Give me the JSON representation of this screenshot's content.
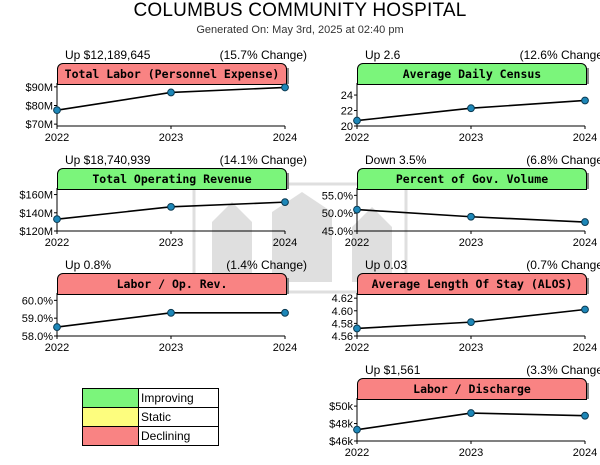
{
  "header": {
    "title": "COLUMBUS COMMUNITY HOSPITAL",
    "generated": "Generated On: May 3rd, 2025 at 02:40 pm"
  },
  "colors": {
    "improving": "#7bf57b",
    "static": "#fdfd7e",
    "declining": "#f98383",
    "point": "#1d87b8"
  },
  "legend": [
    {
      "label": "Improving",
      "color": "#7bf57b"
    },
    {
      "label": "Static",
      "color": "#fdfd7e"
    },
    {
      "label": "Declining",
      "color": "#f98383"
    }
  ],
  "chart_data": [
    {
      "type": "line",
      "title": "Total Labor (Personnel Expense)",
      "status": "declining",
      "change_text": "Up $12,189,645",
      "pct_text": "(15.7% Change)",
      "x": [
        "2022",
        "2023",
        "2024"
      ],
      "values": [
        77.5,
        87.0,
        89.7
      ],
      "yticks": [
        "$90M",
        "$80M",
        "$70M"
      ],
      "ytick_values": [
        90,
        80,
        70
      ],
      "ylim": [
        69,
        91
      ]
    },
    {
      "type": "line",
      "title": "Average Daily Census",
      "status": "improving",
      "change_text": "Up 2.6",
      "pct_text": "(12.6% Change)",
      "x": [
        "2022",
        "2023",
        "2024"
      ],
      "values": [
        20.7,
        22.3,
        23.3
      ],
      "yticks": [
        "24",
        "22",
        "20"
      ],
      "ytick_values": [
        24,
        22,
        20
      ],
      "ylim": [
        20,
        25.3
      ]
    },
    {
      "type": "line",
      "title": "Total Operating Revenue",
      "status": "improving",
      "change_text": "Up $18,740,939",
      "pct_text": "(14.1% Change)",
      "x": [
        "2022",
        "2023",
        "2024"
      ],
      "values": [
        133.0,
        146.5,
        151.7
      ],
      "yticks": [
        "$160M",
        "$140M",
        "$120M"
      ],
      "ytick_values": [
        160,
        140,
        120
      ],
      "ylim": [
        120,
        165
      ]
    },
    {
      "type": "line",
      "title": "Percent of Gov. Volume",
      "status": "improving",
      "change_text": "Down 3.5%",
      "pct_text": "(6.8% Change)",
      "x": [
        "2022",
        "2023",
        "2024"
      ],
      "values": [
        51.0,
        49.0,
        47.5
      ],
      "yticks": [
        "55.0%",
        "50.0%",
        "45.0%"
      ],
      "ytick_values": [
        55,
        50,
        45
      ],
      "ylim": [
        45,
        56.5
      ]
    },
    {
      "type": "line",
      "title": "Labor / Op. Rev.",
      "status": "declining",
      "change_text": "Up 0.8%",
      "pct_text": "(1.4% Change)",
      "x": [
        "2022",
        "2023",
        "2024"
      ],
      "values": [
        58.5,
        59.3,
        59.3
      ],
      "yticks": [
        "60.0%",
        "59.0%",
        "58.0%"
      ],
      "ytick_values": [
        60,
        59,
        58
      ],
      "ylim": [
        58,
        60.3
      ]
    },
    {
      "type": "line",
      "title": "Average Length Of Stay (ALOS)",
      "status": "declining",
      "change_text": "Up 0.03",
      "pct_text": "(0.7% Change)",
      "x": [
        "2022",
        "2023",
        "2024"
      ],
      "values": [
        4.572,
        4.582,
        4.602
      ],
      "yticks": [
        "4.62",
        "4.60",
        "4.58",
        "4.56"
      ],
      "ytick_values": [
        4.62,
        4.6,
        4.58,
        4.56
      ],
      "ylim": [
        4.56,
        4.625
      ]
    },
    {
      "type": "line",
      "title": "Labor / Discharge",
      "status": "declining",
      "change_text": "Up $1,561",
      "pct_text": "(3.3% Change)",
      "x": [
        "2022",
        "2023",
        "2024"
      ],
      "values": [
        47300,
        49200,
        48900
      ],
      "yticks": [
        "$50k",
        "$48k",
        "$46k"
      ],
      "ytick_values": [
        50000,
        48000,
        46000
      ],
      "ylim": [
        46000,
        50700
      ]
    }
  ]
}
